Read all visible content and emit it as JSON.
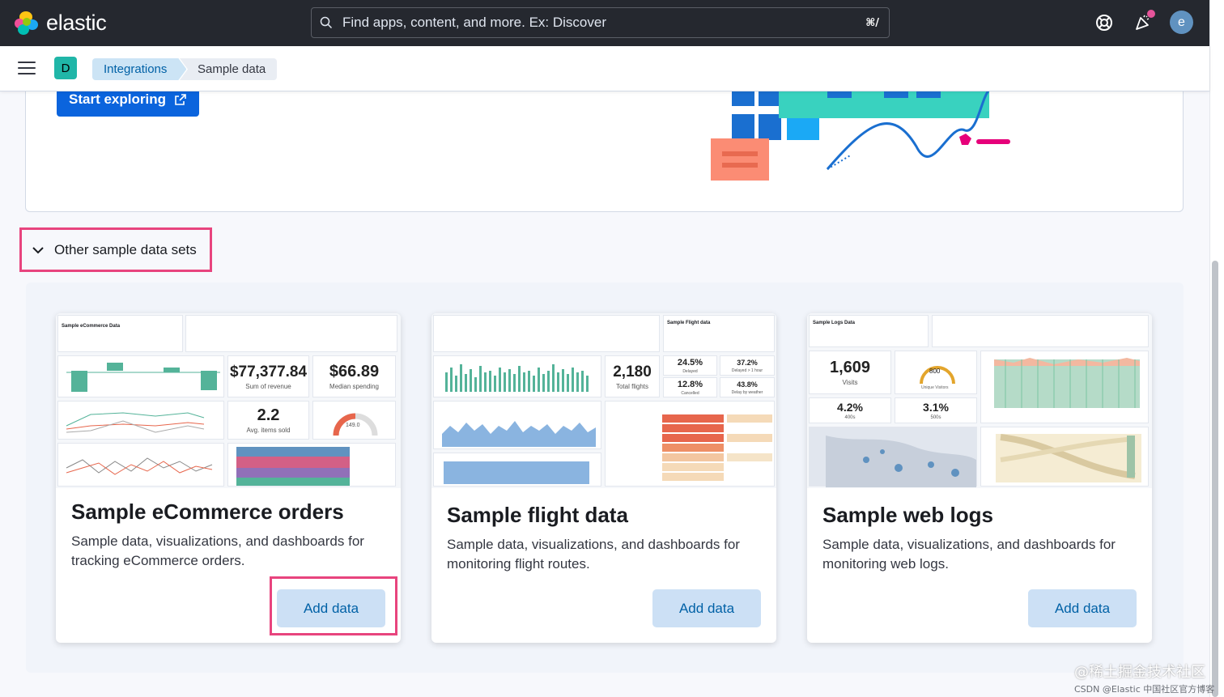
{
  "header": {
    "brand": "elastic",
    "search_placeholder": "Find apps, content, and more. Ex: Discover",
    "search_shortcut": "⌘/",
    "avatar_initial": "e"
  },
  "nav": {
    "space_initial": "D",
    "breadcrumbs": [
      "Integrations",
      "Sample data"
    ]
  },
  "hero": {
    "start_button": "Start exploring"
  },
  "accordion": {
    "label": "Other sample data sets"
  },
  "cards": [
    {
      "title": "Sample eCommerce orders",
      "description": "Sample data, visualizations, and dashboards for tracking eCommerce orders.",
      "button": "Add data",
      "thumb": {
        "heading": "Sample eCommerce Data",
        "stat1_value": "$77,377.84",
        "stat1_label": "Sum of revenue",
        "stat2_value": "$66.89",
        "stat2_label": "Median spending",
        "stat3_value": "2.2",
        "stat3_label": "Avg. items sold",
        "gauge_value": "149.0"
      }
    },
    {
      "title": "Sample flight data",
      "description": "Sample data, visualizations, and dashboards for monitoring flight routes.",
      "button": "Add data",
      "thumb": {
        "heading": "Sample Flight data",
        "stat1_value": "2,180",
        "stat1_label": "Total flights",
        "pct1": "24.5%",
        "pct1_label": "Delayed",
        "pct2": "37.2%",
        "pct2_label": "Delayed > 1 hour",
        "pct3": "12.8%",
        "pct3_label": "Cancelled",
        "pct4": "43.8%",
        "pct4_label": "Delay by weather"
      }
    },
    {
      "title": "Sample web logs",
      "description": "Sample data, visualizations, and dashboards for monitoring web logs.",
      "button": "Add data",
      "thumb": {
        "heading": "Sample Logs Data",
        "stat1_value": "1,609",
        "stat1_label": "Visits",
        "gauge_value": "800",
        "gauge_label": "Unique Visitors",
        "stat2_value": "4.2%",
        "stat2_label": "400s",
        "stat3_value": "3.1%",
        "stat3_label": "500s"
      }
    }
  ],
  "watermark": {
    "line1": "@稀土掘金技术社区",
    "line2": "CSDN @Elastic 中国社区官方博客"
  },
  "colors": {
    "header_bg": "#25282f",
    "primary": "#0b64dd",
    "highlight": "#e8447e",
    "button_secondary_bg": "#cce0f5"
  }
}
